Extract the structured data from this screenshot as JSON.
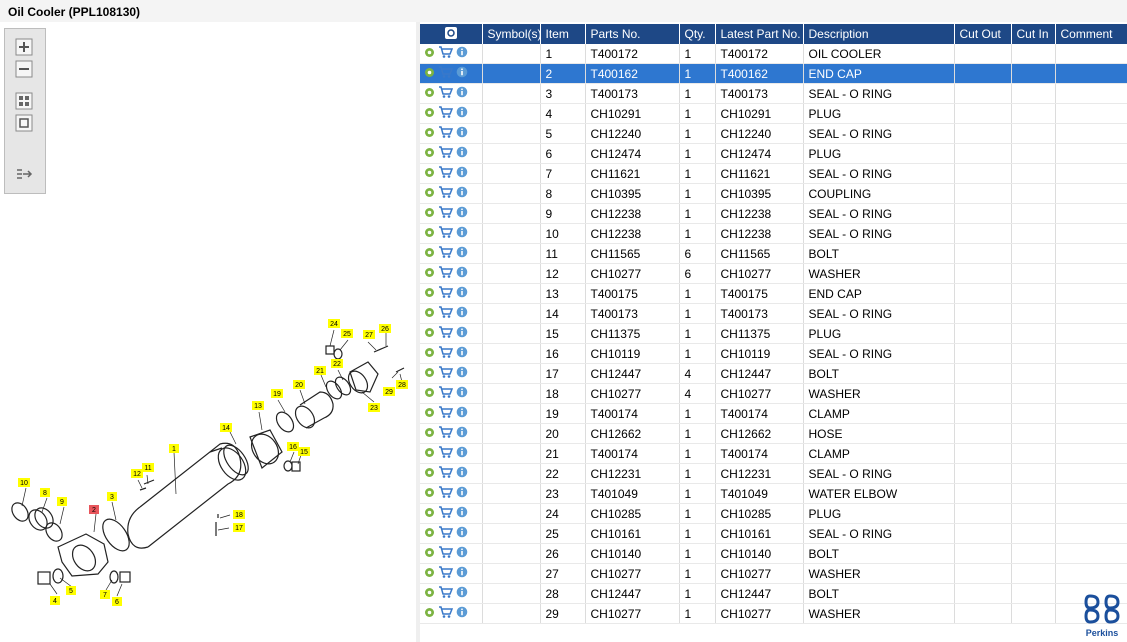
{
  "window": {
    "title": "Oil Cooler (PPL108130)"
  },
  "toolbar": {
    "buttons": [
      "zoom-in",
      "zoom-out",
      "fit-all",
      "actual-size",
      "show-list"
    ]
  },
  "table": {
    "columns": [
      "",
      "Symbol(s)",
      "Item",
      "Parts No.",
      "Qty.",
      "Latest Part No.",
      "Description",
      "Cut Out",
      "Cut In",
      "Comment"
    ],
    "selected_index": 1,
    "rows": [
      {
        "item": "1",
        "part": "T400172",
        "qty": "1",
        "latest": "T400172",
        "desc": "OIL COOLER"
      },
      {
        "item": "2",
        "part": "T400162",
        "qty": "1",
        "latest": "T400162",
        "desc": "END CAP"
      },
      {
        "item": "3",
        "part": "T400173",
        "qty": "1",
        "latest": "T400173",
        "desc": "SEAL - O RING"
      },
      {
        "item": "4",
        "part": "CH10291",
        "qty": "1",
        "latest": "CH10291",
        "desc": "PLUG"
      },
      {
        "item": "5",
        "part": "CH12240",
        "qty": "1",
        "latest": "CH12240",
        "desc": "SEAL - O RING"
      },
      {
        "item": "6",
        "part": "CH12474",
        "qty": "1",
        "latest": "CH12474",
        "desc": "PLUG"
      },
      {
        "item": "7",
        "part": "CH11621",
        "qty": "1",
        "latest": "CH11621",
        "desc": "SEAL - O RING"
      },
      {
        "item": "8",
        "part": "CH10395",
        "qty": "1",
        "latest": "CH10395",
        "desc": "COUPLING"
      },
      {
        "item": "9",
        "part": "CH12238",
        "qty": "1",
        "latest": "CH12238",
        "desc": "SEAL - O RING"
      },
      {
        "item": "10",
        "part": "CH12238",
        "qty": "1",
        "latest": "CH12238",
        "desc": "SEAL - O RING"
      },
      {
        "item": "11",
        "part": "CH11565",
        "qty": "6",
        "latest": "CH11565",
        "desc": "BOLT"
      },
      {
        "item": "12",
        "part": "CH10277",
        "qty": "6",
        "latest": "CH10277",
        "desc": "WASHER"
      },
      {
        "item": "13",
        "part": "T400175",
        "qty": "1",
        "latest": "T400175",
        "desc": "END CAP"
      },
      {
        "item": "14",
        "part": "T400173",
        "qty": "1",
        "latest": "T400173",
        "desc": "SEAL - O RING"
      },
      {
        "item": "15",
        "part": "CH11375",
        "qty": "1",
        "latest": "CH11375",
        "desc": "PLUG"
      },
      {
        "item": "16",
        "part": "CH10119",
        "qty": "1",
        "latest": "CH10119",
        "desc": "SEAL - O RING"
      },
      {
        "item": "17",
        "part": "CH12447",
        "qty": "4",
        "latest": "CH12447",
        "desc": "BOLT"
      },
      {
        "item": "18",
        "part": "CH10277",
        "qty": "4",
        "latest": "CH10277",
        "desc": "WASHER"
      },
      {
        "item": "19",
        "part": "T400174",
        "qty": "1",
        "latest": "T400174",
        "desc": "CLAMP"
      },
      {
        "item": "20",
        "part": "CH12662",
        "qty": "1",
        "latest": "CH12662",
        "desc": "HOSE"
      },
      {
        "item": "21",
        "part": "T400174",
        "qty": "1",
        "latest": "T400174",
        "desc": "CLAMP"
      },
      {
        "item": "22",
        "part": "CH12231",
        "qty": "1",
        "latest": "CH12231",
        "desc": "SEAL - O RING"
      },
      {
        "item": "23",
        "part": "T401049",
        "qty": "1",
        "latest": "T401049",
        "desc": "WATER ELBOW"
      },
      {
        "item": "24",
        "part": "CH10285",
        "qty": "1",
        "latest": "CH10285",
        "desc": "PLUG"
      },
      {
        "item": "25",
        "part": "CH10161",
        "qty": "1",
        "latest": "CH10161",
        "desc": "SEAL - O RING"
      },
      {
        "item": "26",
        "part": "CH10140",
        "qty": "1",
        "latest": "CH10140",
        "desc": "BOLT"
      },
      {
        "item": "27",
        "part": "CH10277",
        "qty": "1",
        "latest": "CH10277",
        "desc": "WASHER"
      },
      {
        "item": "28",
        "part": "CH12447",
        "qty": "1",
        "latest": "CH12447",
        "desc": "BOLT"
      },
      {
        "item": "29",
        "part": "CH10277",
        "qty": "1",
        "latest": "CH10277",
        "desc": "WASHER"
      }
    ]
  },
  "diagram": {
    "callouts": [
      "1",
      "2",
      "3",
      "4",
      "5",
      "6",
      "7",
      "8",
      "9",
      "10",
      "11",
      "12",
      "13",
      "14",
      "15",
      "16",
      "17",
      "18",
      "19",
      "20",
      "21",
      "22",
      "23",
      "24",
      "25",
      "26",
      "27",
      "28",
      "29"
    ],
    "highlighted": "2"
  },
  "logo": {
    "text": "Perkins"
  },
  "colors": {
    "header": "#1e4886",
    "selected_row": "#2e77d0",
    "callout": "#ffff00",
    "callout_highlight": "#e8555b"
  }
}
